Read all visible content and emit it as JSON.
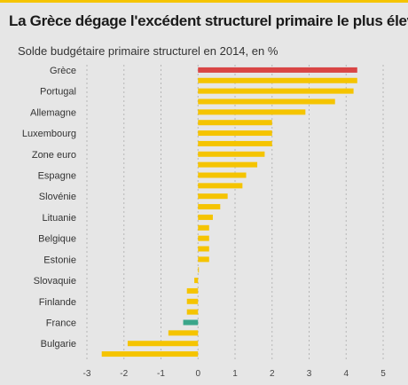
{
  "colors": {
    "accent": "#f5c400",
    "bar_default": "#f5c400",
    "bar_highlight_greece": "#d94545",
    "bar_highlight_france": "#3aa68a",
    "grid": "#b5b5b5",
    "background": "#e6e6e6"
  },
  "chart_data": {
    "type": "bar",
    "orientation": "horizontal",
    "title": "La Grèce dégage l'excédent structurel primaire le plus élevé",
    "subtitle": "Solde budgétaire primaire structurel en 2014, en %",
    "xlim": [
      -3,
      5
    ],
    "x_ticks": [
      "-3",
      "-2",
      "-1",
      "0",
      "1",
      "2",
      "3",
      "4",
      "5"
    ],
    "grid": "vertical dashed",
    "bars": [
      {
        "label": "Grèce",
        "value": 4.3,
        "color": "#d94545"
      },
      {
        "label": "",
        "value": 4.3
      },
      {
        "label": "Portugal",
        "value": 4.2
      },
      {
        "label": "",
        "value": 3.7
      },
      {
        "label": "Allemagne",
        "value": 2.9
      },
      {
        "label": "",
        "value": 2.0
      },
      {
        "label": "Luxembourg",
        "value": 2.0
      },
      {
        "label": "",
        "value": 2.0
      },
      {
        "label": "Zone euro",
        "value": 1.8
      },
      {
        "label": "",
        "value": 1.6
      },
      {
        "label": "Espagne",
        "value": 1.3
      },
      {
        "label": "",
        "value": 1.2
      },
      {
        "label": "Slovénie",
        "value": 0.8
      },
      {
        "label": "",
        "value": 0.6
      },
      {
        "label": "Lituanie",
        "value": 0.4
      },
      {
        "label": "",
        "value": 0.3
      },
      {
        "label": "Belgique",
        "value": 0.3
      },
      {
        "label": "",
        "value": 0.3
      },
      {
        "label": "Estonie",
        "value": 0.3
      },
      {
        "label": "",
        "value": 0.0
      },
      {
        "label": "Slovaquie",
        "value": -0.1
      },
      {
        "label": "",
        "value": -0.3
      },
      {
        "label": "Finlande",
        "value": -0.3
      },
      {
        "label": "",
        "value": -0.3
      },
      {
        "label": "France",
        "value": -0.4,
        "color": "#3aa68a"
      },
      {
        "label": "",
        "value": -0.8
      },
      {
        "label": "Bulgarie",
        "value": -1.9
      },
      {
        "label": "",
        "value": -2.6
      }
    ]
  }
}
